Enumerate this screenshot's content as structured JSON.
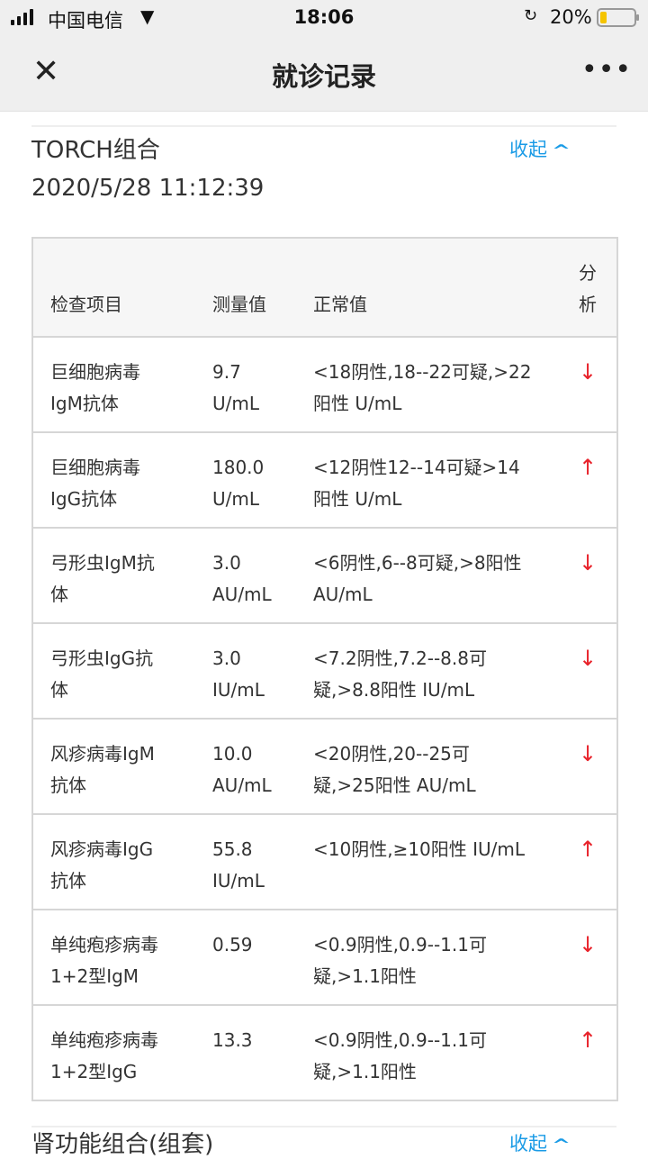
{
  "status_bar": {
    "carrier": "中国电信",
    "time": "18:06",
    "battery": "20%",
    "battery_level": 0.2
  },
  "nav": {
    "title": "就诊记录",
    "close_icon": "close-icon",
    "more_icon": "more-icon",
    "more": "•••",
    "close": "✕"
  },
  "section": {
    "title": "TORCH组合",
    "datetime": "2020/5/28 11:12:39",
    "collapse_label": "收起",
    "table": {
      "headers": [
        "检查项目",
        "测量值",
        "正常值",
        [
          "分",
          "析"
        ]
      ],
      "rows": [
        {
          "item": [
            "巨细胞病毒",
            "IgM抗体"
          ],
          "value": [
            "9.7",
            "U/mL"
          ],
          "normal": [
            "<18阴性,18--22可疑,>22",
            "阳性 U/mL"
          ],
          "analysis": "↓"
        },
        {
          "item": [
            "巨细胞病毒",
            "IgG抗体"
          ],
          "value": [
            "180.0",
            "U/mL"
          ],
          "normal": [
            "<12阴性12--14可疑>14",
            "阳性 U/mL"
          ],
          "analysis": "↑"
        },
        {
          "item": [
            "弓形虫IgM抗",
            "体"
          ],
          "value": [
            "3.0",
            "AU/mL"
          ],
          "normal": [
            "<6阴性,6--8可疑,>8阳性",
            "AU/mL"
          ],
          "analysis": "↓"
        },
        {
          "item": [
            "弓形虫IgG抗",
            "体"
          ],
          "value": [
            "3.0",
            "IU/mL"
          ],
          "normal": [
            "<7.2阴性,7.2--8.8可",
            "疑,>8.8阳性 IU/mL"
          ],
          "analysis": "↓"
        },
        {
          "item": [
            "风疹病毒IgM",
            "抗体"
          ],
          "value": [
            "10.0",
            "AU/mL"
          ],
          "normal": [
            "<20阴性,20--25可",
            "疑,>25阳性 AU/mL"
          ],
          "analysis": "↓"
        },
        {
          "item": [
            "风疹病毒IgG",
            "抗体"
          ],
          "value": [
            "55.8",
            "IU/mL"
          ],
          "normal": [
            "<10阴性,≥10阳性 IU/mL"
          ],
          "analysis": "↑"
        },
        {
          "item": [
            "单纯疱疹病毒",
            "1+2型IgM"
          ],
          "value": [
            "0.59"
          ],
          "normal": [
            "<0.9阴性,0.9--1.1可",
            "疑,>1.1阳性"
          ],
          "analysis": "↓"
        },
        {
          "item": [
            "单纯疱疹病毒",
            "1+2型IgG"
          ],
          "value": [
            "13.3"
          ],
          "normal": [
            "<0.9阴性,0.9--1.1可",
            "疑,>1.1阳性"
          ],
          "analysis": "↑"
        }
      ]
    }
  },
  "next_section": {
    "title": "肾功能组合(组套)",
    "collapse_label": "收起"
  },
  "colors": {
    "accent": "#1a9be6",
    "abnormal": "#e8232b"
  }
}
